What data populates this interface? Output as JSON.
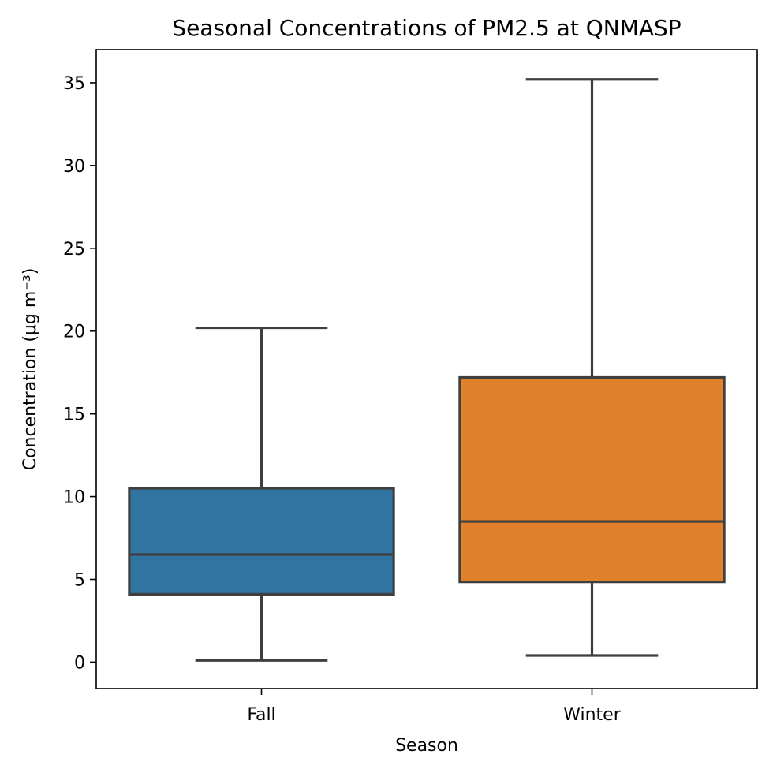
{
  "chart_data": {
    "type": "box",
    "title": "Seasonal Concentrations of PM2.5 at QNMASP",
    "xlabel": "Season",
    "ylabel": "Concentration (μg m⁻³)",
    "ylim": [
      -1.6,
      37.0
    ],
    "yticks": [
      0,
      5,
      10,
      15,
      20,
      25,
      30,
      35
    ],
    "categories": [
      "Fall",
      "Winter"
    ],
    "boxes": [
      {
        "category": "Fall",
        "whisker_low": 0.1,
        "q1": 4.1,
        "median": 6.5,
        "q3": 10.5,
        "whisker_high": 20.2,
        "color": "#3274a1"
      },
      {
        "category": "Winter",
        "whisker_low": 0.4,
        "q1": 4.85,
        "median": 8.5,
        "q3": 17.2,
        "whisker_high": 35.2,
        "color": "#e1812c"
      }
    ],
    "grid": false,
    "line_color": "#3f3f3f"
  }
}
